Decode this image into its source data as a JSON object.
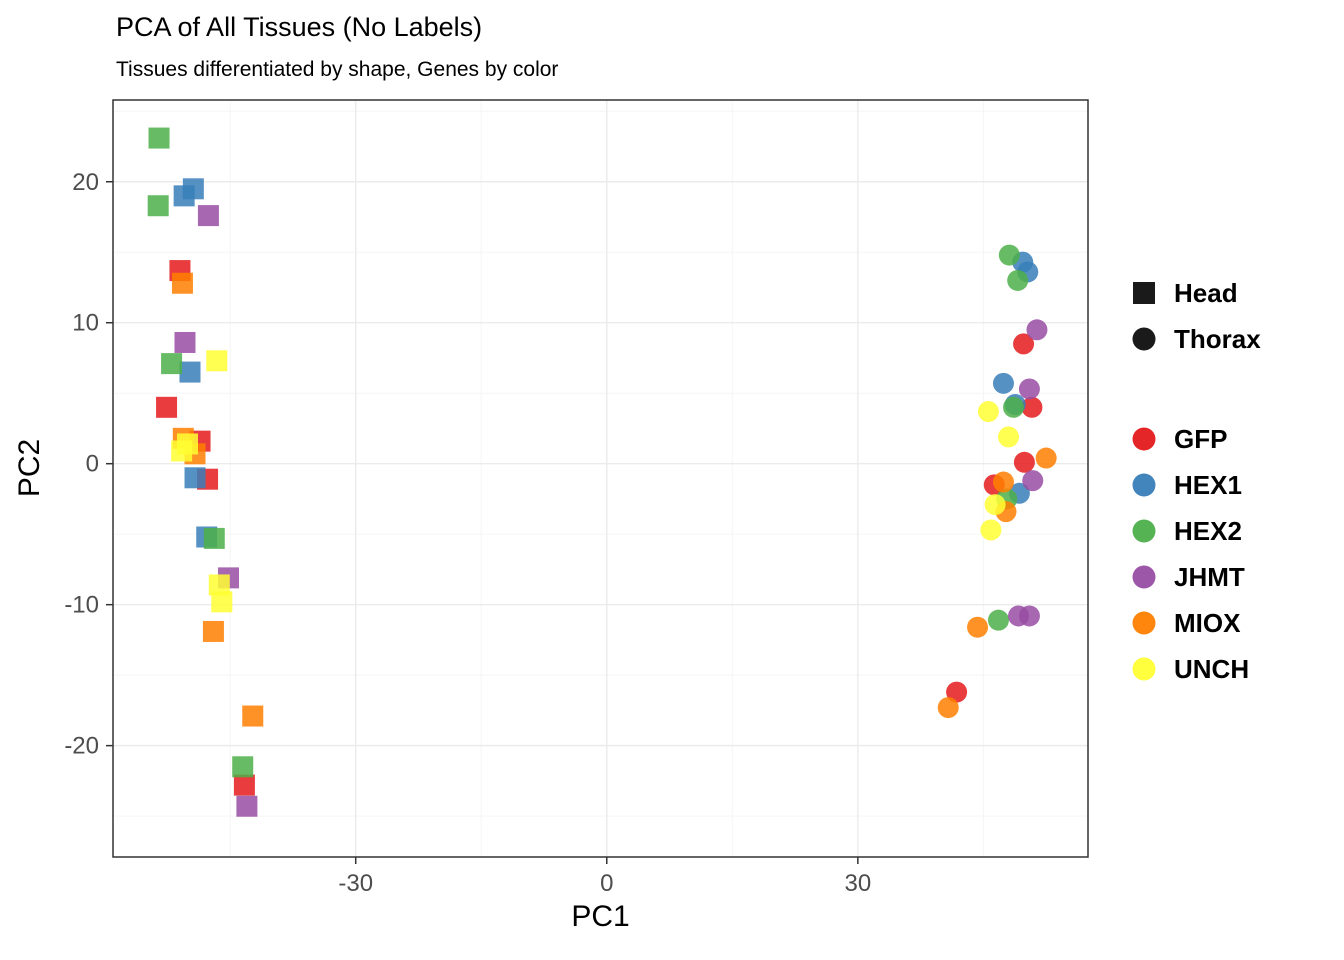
{
  "title": "PCA of All Tissues (No Labels)",
  "subtitle": "Tissues differentiated by shape, Genes by color",
  "chart_data": {
    "type": "scatter",
    "title": "PCA of All Tissues (No Labels)",
    "subtitle": "Tissues differentiated by shape, Genes by color",
    "xlabel": "PC1",
    "ylabel": "PC2",
    "xlim": [
      -59,
      57.5
    ],
    "ylim": [
      -27.9,
      25.8
    ],
    "x_ticks": [
      -30,
      0,
      30
    ],
    "y_ticks": [
      -20,
      -10,
      0,
      10,
      20
    ],
    "x_minor_ticks": [
      -45,
      -15,
      15,
      45
    ],
    "y_minor_ticks": [
      -25,
      -15,
      -5,
      5,
      15,
      25
    ],
    "grid": true,
    "legend_position": "right",
    "shape_legend": [
      {
        "label": "Head",
        "shape": "square"
      },
      {
        "label": "Thorax",
        "shape": "circle"
      }
    ],
    "genes": [
      {
        "name": "GFP",
        "color": "#E41A1C"
      },
      {
        "name": "HEX1",
        "color": "#377EB8"
      },
      {
        "name": "HEX2",
        "color": "#4DAF4A"
      },
      {
        "name": "JHMT",
        "color": "#984EA3"
      },
      {
        "name": "MIOX",
        "color": "#FF7F00"
      },
      {
        "name": "UNCH",
        "color": "#FFFF33"
      }
    ],
    "series": [
      {
        "gene": "GFP",
        "tissue": "Head",
        "shape": "square",
        "color": "#E41A1C",
        "points": [
          [
            -51.0,
            13.7
          ],
          [
            -52.6,
            4.0
          ],
          [
            -48.6,
            1.6
          ],
          [
            -47.7,
            -1.1
          ],
          [
            -43.3,
            -22.8
          ]
        ]
      },
      {
        "gene": "HEX1",
        "tissue": "Head",
        "shape": "square",
        "color": "#377EB8",
        "points": [
          [
            -50.5,
            19.0
          ],
          [
            -49.4,
            19.5
          ],
          [
            -49.8,
            6.5
          ],
          [
            -49.2,
            -1.0
          ],
          [
            -47.8,
            -5.2
          ]
        ]
      },
      {
        "gene": "HEX2",
        "tissue": "Head",
        "shape": "square",
        "color": "#4DAF4A",
        "points": [
          [
            -53.5,
            23.1
          ],
          [
            -53.6,
            18.3
          ],
          [
            -52.0,
            7.1
          ],
          [
            -46.9,
            -5.3
          ],
          [
            -43.5,
            -21.5
          ]
        ]
      },
      {
        "gene": "JHMT",
        "tissue": "Head",
        "shape": "square",
        "color": "#984EA3",
        "points": [
          [
            -47.6,
            17.6
          ],
          [
            -50.4,
            8.6
          ],
          [
            -45.2,
            -8.1
          ],
          [
            -43.0,
            -24.3
          ]
        ]
      },
      {
        "gene": "MIOX",
        "tissue": "Head",
        "shape": "square",
        "color": "#FF7F00",
        "points": [
          [
            -50.7,
            12.8
          ],
          [
            -50.6,
            1.8
          ],
          [
            -49.2,
            0.7
          ],
          [
            -47.0,
            -11.9
          ],
          [
            -42.3,
            -17.9
          ]
        ]
      },
      {
        "gene": "UNCH",
        "tissue": "Head",
        "shape": "square",
        "color": "#FFFF33",
        "points": [
          [
            -46.6,
            7.3
          ],
          [
            -50.8,
            0.9
          ],
          [
            -50.1,
            1.4
          ],
          [
            -46.3,
            -8.6
          ],
          [
            -46.0,
            -9.8
          ]
        ]
      },
      {
        "gene": "GFP",
        "tissue": "Thorax",
        "shape": "circle",
        "color": "#E41A1C",
        "points": [
          [
            49.8,
            8.5
          ],
          [
            50.8,
            4.0
          ],
          [
            49.9,
            0.1
          ],
          [
            46.3,
            -1.5
          ],
          [
            41.8,
            -16.2
          ]
        ]
      },
      {
        "gene": "HEX1",
        "tissue": "Thorax",
        "shape": "circle",
        "color": "#377EB8",
        "points": [
          [
            49.7,
            14.3
          ],
          [
            50.3,
            13.6
          ],
          [
            47.4,
            5.7
          ],
          [
            48.8,
            4.2
          ],
          [
            49.3,
            -2.1
          ]
        ]
      },
      {
        "gene": "HEX2",
        "tissue": "Thorax",
        "shape": "circle",
        "color": "#4DAF4A",
        "points": [
          [
            48.1,
            14.8
          ],
          [
            49.1,
            13.0
          ],
          [
            48.6,
            4.0
          ],
          [
            47.8,
            -2.5
          ],
          [
            46.8,
            -11.1
          ]
        ]
      },
      {
        "gene": "JHMT",
        "tissue": "Thorax",
        "shape": "circle",
        "color": "#984EA3",
        "points": [
          [
            51.4,
            9.5
          ],
          [
            50.5,
            5.3
          ],
          [
            50.9,
            -1.2
          ],
          [
            49.2,
            -10.8
          ],
          [
            50.5,
            -10.8
          ]
        ]
      },
      {
        "gene": "MIOX",
        "tissue": "Thorax",
        "shape": "circle",
        "color": "#FF7F00",
        "points": [
          [
            52.5,
            0.4
          ],
          [
            47.4,
            -1.3
          ],
          [
            47.7,
            -3.4
          ],
          [
            44.3,
            -11.6
          ],
          [
            40.8,
            -17.3
          ]
        ]
      },
      {
        "gene": "UNCH",
        "tissue": "Thorax",
        "shape": "circle",
        "color": "#FFFF33",
        "points": [
          [
            45.6,
            3.7
          ],
          [
            48.0,
            1.9
          ],
          [
            46.4,
            -2.9
          ],
          [
            45.9,
            -4.7
          ]
        ]
      }
    ],
    "style": {
      "point_opacity": 0.85,
      "square_size": 21,
      "circle_radius": 10.5,
      "major_grid_color": "#ebebeb",
      "minor_grid_color": "#f5f5f5",
      "panel_border_color": "#333333",
      "tick_label_color": "#4d4d4d",
      "shape_key_color": "#1a1a1a"
    }
  }
}
